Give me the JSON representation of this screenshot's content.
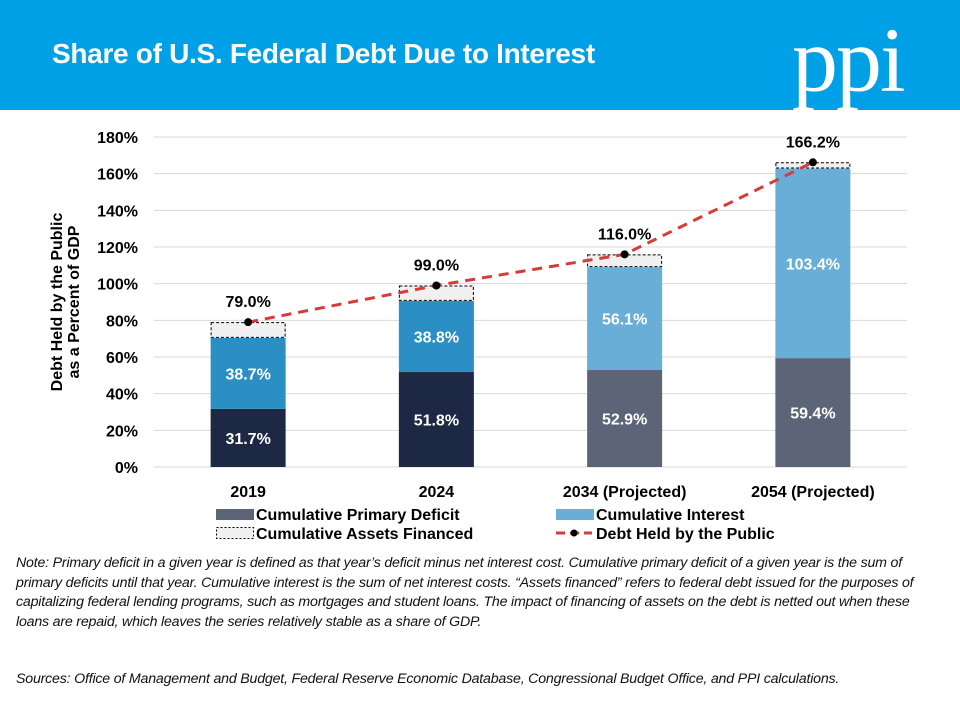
{
  "header": {
    "title": "Share of U.S. Federal Debt Due to Interest",
    "logo_text": "ppi"
  },
  "colors": {
    "header_bg": "#00a0e6",
    "primary_deficit_historical": "#1c2844",
    "interest_historical": "#2b8fc4",
    "primary_deficit_projected": "#5c6478",
    "interest_projected": "#68aed6",
    "assets_fill": "#f0f0f0",
    "debt_line": "#d63a3a"
  },
  "chart_data": {
    "type": "bar",
    "stacked": true,
    "title": "Share of U.S. Federal Debt Due to Interest",
    "xlabel": "",
    "ylabel": "Debt Held by the Public as a Percent of GDP",
    "ylabel_lines": [
      "Debt Held by the Public",
      "as a Percent of GDP"
    ],
    "ylim": [
      0,
      180
    ],
    "yticks": [
      0,
      20,
      40,
      60,
      80,
      100,
      120,
      140,
      160,
      180
    ],
    "ytick_labels": [
      "0%",
      "20%",
      "40%",
      "60%",
      "80%",
      "100%",
      "120%",
      "140%",
      "160%",
      "180%"
    ],
    "grid": true,
    "categories": [
      "2019",
      "2024",
      "2034 (Projected)",
      "2054 (Projected)"
    ],
    "projected": [
      false,
      false,
      true,
      true
    ],
    "series": [
      {
        "name": "Cumulative Primary Deficit",
        "values": [
          31.7,
          51.8,
          52.9,
          59.4
        ],
        "labels": [
          "31.7%",
          "51.8%",
          "52.9%",
          "59.4%"
        ]
      },
      {
        "name": "Cumulative Interest",
        "values": [
          38.7,
          38.8,
          56.1,
          103.4
        ],
        "labels": [
          "38.7%",
          "38.8%",
          "56.1%",
          "103.4%"
        ]
      },
      {
        "name": "Cumulative Assets Financed",
        "values": [
          8.6,
          8.4,
          7.0,
          3.4
        ]
      },
      {
        "name": "Debt Held by the Public",
        "type": "line",
        "values": [
          79.0,
          99.0,
          116.0,
          166.2
        ],
        "labels": [
          "79.0%",
          "99.0%",
          "116.0%",
          "166.2%"
        ]
      }
    ],
    "legend": {
      "placement": "bottom",
      "items": [
        "Cumulative Primary Deficit",
        "Cumulative Interest",
        "Cumulative Assets Financed",
        "Debt Held by the Public"
      ]
    }
  },
  "note": "Note: Primary deficit in a given year is defined as that year’s deficit minus net interest cost. Cumulative primary deficit of a given year is the sum of primary deficits until that year. Cumulative interest is the sum of net interest costs. “Assets financed” refers to federal debt issued for the purposes of capitalizing federal lending programs, such as mortgages and student loans. The impact of financing of assets on the debt is netted out when these loans are repaid, which leaves the series relatively stable as a share of GDP.",
  "sources": "Sources: Office of Management and Budget, Federal Reserve Economic Database, Congressional Budget Office, and PPI calculations."
}
